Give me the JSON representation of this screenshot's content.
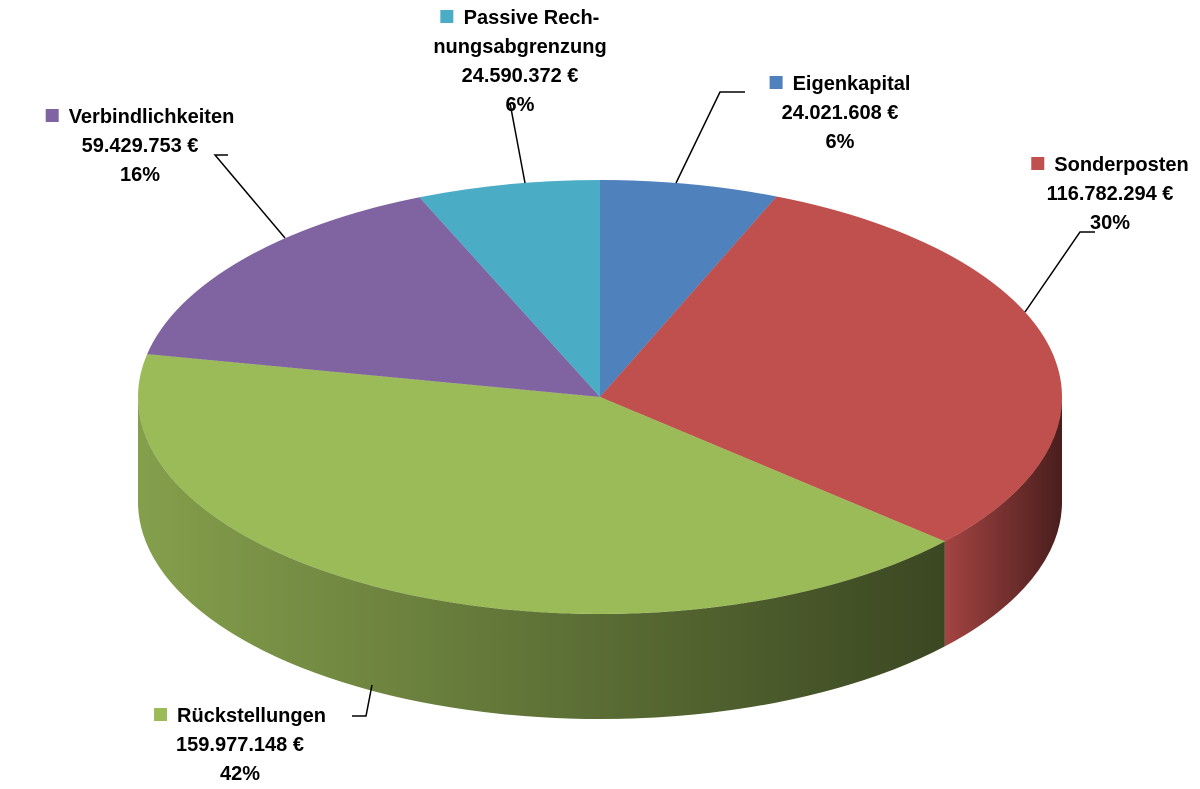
{
  "chart_data": {
    "type": "pie",
    "categories": [
      "Eigenkapital",
      "Sonderposten",
      "Rückstellungen",
      "Verbindlichkeiten",
      "Passive Rech-\nnungsabgrenzung"
    ],
    "values": [
      24021608,
      116782294,
      159977148,
      59429753,
      24590372
    ],
    "value_labels": [
      "24.021.608 €",
      "116.782.294 €",
      "159.977.148 €",
      "59.429.753 €",
      "24.590.372 €"
    ],
    "percentages": [
      6,
      30,
      42,
      16,
      6
    ],
    "percentage_labels": [
      "6%",
      "30%",
      "42%",
      "16%",
      "6%"
    ],
    "colors": [
      "#4f81bd",
      "#c0504d",
      "#9bbb59",
      "#8064a2",
      "#4bacc6"
    ],
    "three_d": true
  }
}
